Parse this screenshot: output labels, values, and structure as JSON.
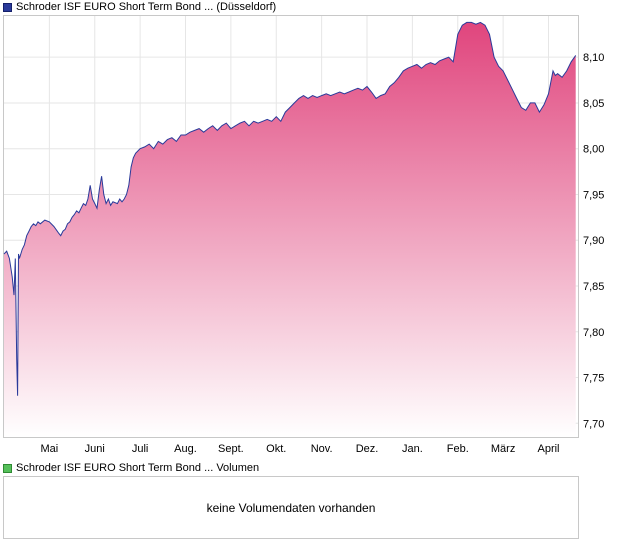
{
  "price_panel": {
    "legend_label": "Schroder ISF EURO Short Term Bond ... (Düsseldorf)",
    "legend_color": "#2a3a9a"
  },
  "volume_panel": {
    "legend_label": "Schroder ISF EURO Short Term Bond ... Volumen",
    "legend_color": "#55c05a",
    "message": "keine Volumendaten vorhanden"
  },
  "chart_data": {
    "type": "area",
    "ylim": [
      7.685,
      8.145
    ],
    "yticks": [
      {
        "value": 7.7,
        "label": "7,70"
      },
      {
        "value": 7.75,
        "label": "7,75"
      },
      {
        "value": 7.8,
        "label": "7,80"
      },
      {
        "value": 7.85,
        "label": "7,85"
      },
      {
        "value": 7.9,
        "label": "7,90"
      },
      {
        "value": 7.95,
        "label": "7,95"
      },
      {
        "value": 8.0,
        "label": "8,00"
      },
      {
        "value": 8.05,
        "label": "8,05"
      },
      {
        "value": 8.1,
        "label": "8,10"
      }
    ],
    "xlim": [
      0,
      12.65
    ],
    "xticks": [
      {
        "value": 1.0,
        "label": "Mai"
      },
      {
        "value": 2.0,
        "label": "Juni"
      },
      {
        "value": 3.0,
        "label": "Juli"
      },
      {
        "value": 4.0,
        "label": "Aug."
      },
      {
        "value": 5.0,
        "label": "Sept."
      },
      {
        "value": 6.0,
        "label": "Okt."
      },
      {
        "value": 7.0,
        "label": "Nov."
      },
      {
        "value": 8.0,
        "label": "Dez."
      },
      {
        "value": 9.0,
        "label": "Jan."
      },
      {
        "value": 10.0,
        "label": "Feb."
      },
      {
        "value": 11.0,
        "label": "März"
      },
      {
        "value": 12.0,
        "label": "April"
      }
    ],
    "grid": true,
    "line_color": "#2a3a9a",
    "fill_top_color": "#e0457d",
    "fill_bottom_color": "#ffffff",
    "series": [
      {
        "x": [
          0.0,
          0.06,
          0.12,
          0.18,
          0.22,
          0.25,
          0.28,
          0.3,
          0.32,
          0.34,
          0.37,
          0.4,
          0.45,
          0.5,
          0.55,
          0.6,
          0.65,
          0.7,
          0.75,
          0.8,
          0.9,
          1.0,
          1.1,
          1.2,
          1.25,
          1.3,
          1.35,
          1.4,
          1.45,
          1.5,
          1.55,
          1.6,
          1.65,
          1.7,
          1.75,
          1.8,
          1.85,
          1.9,
          1.95,
          2.0,
          2.05,
          2.1,
          2.15,
          2.2,
          2.25,
          2.3,
          2.35,
          2.4,
          2.5,
          2.55,
          2.6,
          2.65,
          2.7,
          2.75,
          2.8,
          2.85,
          2.9,
          3.0,
          3.1,
          3.2,
          3.3,
          3.4,
          3.5,
          3.6,
          3.7,
          3.8,
          3.9,
          4.0,
          4.1,
          4.2,
          4.3,
          4.4,
          4.5,
          4.6,
          4.7,
          4.8,
          4.9,
          5.0,
          5.1,
          5.2,
          5.3,
          5.4,
          5.5,
          5.6,
          5.7,
          5.8,
          5.9,
          6.0,
          6.1,
          6.2,
          6.3,
          6.4,
          6.5,
          6.6,
          6.7,
          6.8,
          6.9,
          7.0,
          7.1,
          7.2,
          7.3,
          7.4,
          7.5,
          7.6,
          7.7,
          7.8,
          7.9,
          8.0,
          8.1,
          8.2,
          8.3,
          8.4,
          8.5,
          8.6,
          8.7,
          8.8,
          8.9,
          9.0,
          9.1,
          9.2,
          9.3,
          9.4,
          9.5,
          9.6,
          9.7,
          9.8,
          9.9,
          10.0,
          10.1,
          10.2,
          10.3,
          10.4,
          10.5,
          10.6,
          10.7,
          10.8,
          10.9,
          11.0,
          11.1,
          11.2,
          11.3,
          11.4,
          11.5,
          11.6,
          11.7,
          11.8,
          11.9,
          12.0,
          12.1,
          12.15,
          12.2,
          12.3,
          12.4,
          12.5,
          12.6
        ],
        "values": [
          7.885,
          7.888,
          7.88,
          7.86,
          7.84,
          7.88,
          7.77,
          7.73,
          7.885,
          7.88,
          7.885,
          7.89,
          7.895,
          7.905,
          7.91,
          7.915,
          7.918,
          7.916,
          7.92,
          7.918,
          7.922,
          7.92,
          7.915,
          7.908,
          7.905,
          7.91,
          7.912,
          7.918,
          7.92,
          7.925,
          7.928,
          7.932,
          7.93,
          7.935,
          7.94,
          7.938,
          7.945,
          7.96,
          7.945,
          7.94,
          7.935,
          7.955,
          7.97,
          7.95,
          7.94,
          7.945,
          7.938,
          7.942,
          7.94,
          7.945,
          7.942,
          7.945,
          7.95,
          7.96,
          7.98,
          7.99,
          7.995,
          8.0,
          8.002,
          8.005,
          8.0,
          8.008,
          8.005,
          8.01,
          8.012,
          8.008,
          8.015,
          8.015,
          8.018,
          8.02,
          8.022,
          8.018,
          8.022,
          8.025,
          8.02,
          8.025,
          8.028,
          8.022,
          8.025,
          8.028,
          8.03,
          8.025,
          8.03,
          8.028,
          8.03,
          8.032,
          8.03,
          8.035,
          8.03,
          8.04,
          8.045,
          8.05,
          8.055,
          8.058,
          8.055,
          8.058,
          8.056,
          8.058,
          8.06,
          8.058,
          8.06,
          8.062,
          8.06,
          8.062,
          8.064,
          8.066,
          8.064,
          8.068,
          8.062,
          8.055,
          8.058,
          8.06,
          8.068,
          8.072,
          8.078,
          8.085,
          8.088,
          8.09,
          8.092,
          8.088,
          8.092,
          8.094,
          8.092,
          8.096,
          8.098,
          8.1,
          8.095,
          8.125,
          8.135,
          8.138,
          8.138,
          8.136,
          8.138,
          8.135,
          8.125,
          8.1,
          8.09,
          8.085,
          8.075,
          8.065,
          8.055,
          8.045,
          8.042,
          8.05,
          8.05,
          8.04,
          8.048,
          8.06,
          8.085,
          8.08,
          8.082,
          8.078,
          8.085,
          8.095,
          8.102
        ]
      }
    ]
  }
}
